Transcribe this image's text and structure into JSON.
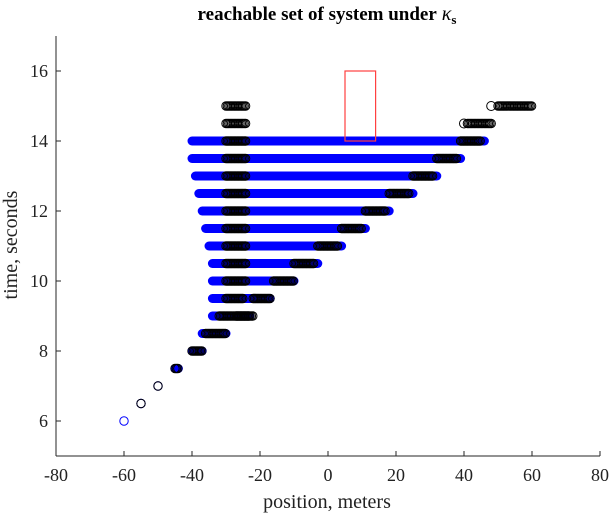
{
  "chart_data": {
    "type": "scatter",
    "title": "reachable set of system under",
    "title_symbol": "κ",
    "title_subscript": "s",
    "xlabel": "position, meters",
    "ylabel": "time, seconds",
    "xlim": [
      -80,
      80
    ],
    "ylim": [
      5,
      17
    ],
    "xticks": [
      "-80",
      "-60",
      "-40",
      "-20",
      "0",
      "20",
      "40",
      "60",
      "80"
    ],
    "yticks": [
      "6",
      "8",
      "10",
      "12",
      "14",
      "16"
    ],
    "grid": false,
    "colors": {
      "blue_series": "#0000ff",
      "black_series": "#000000",
      "target": "#ff4040",
      "axes": "#262626"
    },
    "blue_bands": [
      {
        "t": 6.0,
        "x_min": -60,
        "x_max": -60
      },
      {
        "t": 6.5,
        "x_min": -55,
        "x_max": -55
      },
      {
        "t": 7.0,
        "x_min": -50,
        "x_max": -50
      },
      {
        "t": 7.5,
        "x_min": -45,
        "x_max": -44
      },
      {
        "t": 8.0,
        "x_min": -40,
        "x_max": -37
      },
      {
        "t": 8.5,
        "x_min": -37,
        "x_max": -30
      },
      {
        "t": 9.0,
        "x_min": -34,
        "x_max": -23
      },
      {
        "t": 9.5,
        "x_min": -34,
        "x_max": -17
      },
      {
        "t": 10.0,
        "x_min": -34,
        "x_max": -10
      },
      {
        "t": 10.5,
        "x_min": -34,
        "x_max": -3
      },
      {
        "t": 11.0,
        "x_min": -35,
        "x_max": 4
      },
      {
        "t": 11.5,
        "x_min": -36,
        "x_max": 11
      },
      {
        "t": 12.0,
        "x_min": -37,
        "x_max": 18
      },
      {
        "t": 12.5,
        "x_min": -38,
        "x_max": 25
      },
      {
        "t": 13.0,
        "x_min": -39,
        "x_max": 32
      },
      {
        "t": 13.5,
        "x_min": -40,
        "x_max": 39
      },
      {
        "t": 14.0,
        "x_min": -40,
        "x_max": 46
      }
    ],
    "black_clusters": [
      {
        "t": 6.5,
        "x_min": -55,
        "x_max": -55
      },
      {
        "t": 7.0,
        "x_min": -50,
        "x_max": -50
      },
      {
        "t": 7.5,
        "x_min": -45,
        "x_max": -44
      },
      {
        "t": 8.0,
        "x_min": -40,
        "x_max": -37
      },
      {
        "t": 8.5,
        "x_min": -36,
        "x_max": -30
      },
      {
        "t": 9.0,
        "x_min": -32,
        "x_max": -22
      },
      {
        "t": 9.0,
        "x_min": -27,
        "x_max": -23
      },
      {
        "t": 9.5,
        "x_min": -30,
        "x_max": -25
      },
      {
        "t": 9.5,
        "x_min": -22,
        "x_max": -17
      },
      {
        "t": 10.0,
        "x_min": -30,
        "x_max": -24
      },
      {
        "t": 10.0,
        "x_min": -16,
        "x_max": -10
      },
      {
        "t": 10.5,
        "x_min": -30,
        "x_max": -24
      },
      {
        "t": 10.5,
        "x_min": -10,
        "x_max": -4
      },
      {
        "t": 11.0,
        "x_min": -30,
        "x_max": -24
      },
      {
        "t": 11.0,
        "x_min": -3,
        "x_max": 3
      },
      {
        "t": 11.5,
        "x_min": -30,
        "x_max": -24
      },
      {
        "t": 11.5,
        "x_min": 4,
        "x_max": 10
      },
      {
        "t": 12.0,
        "x_min": -30,
        "x_max": -24
      },
      {
        "t": 12.0,
        "x_min": 11,
        "x_max": 17
      },
      {
        "t": 12.5,
        "x_min": -30,
        "x_max": -24
      },
      {
        "t": 12.5,
        "x_min": 18,
        "x_max": 24
      },
      {
        "t": 13.0,
        "x_min": -30,
        "x_max": -24
      },
      {
        "t": 13.0,
        "x_min": 25,
        "x_max": 31
      },
      {
        "t": 13.5,
        "x_min": -30,
        "x_max": -24
      },
      {
        "t": 13.5,
        "x_min": 32,
        "x_max": 38
      },
      {
        "t": 14.0,
        "x_min": -30,
        "x_max": -24
      },
      {
        "t": 14.0,
        "x_min": 39,
        "x_max": 45
      },
      {
        "t": 14.5,
        "x_min": -30,
        "x_max": -24
      },
      {
        "t": 14.5,
        "x_min": 41,
        "x_max": 48
      },
      {
        "t": 15.0,
        "x_min": -30,
        "x_max": -24
      },
      {
        "t": 15.0,
        "x_min": 50,
        "x_max": 60
      }
    ],
    "black_markers": [
      {
        "t": 14.5,
        "x": 40
      },
      {
        "t": 15.0,
        "x": 48
      }
    ],
    "target_region": {
      "x_min": 5,
      "x_max": 14,
      "t_min": 14,
      "t_max": 16
    }
  }
}
